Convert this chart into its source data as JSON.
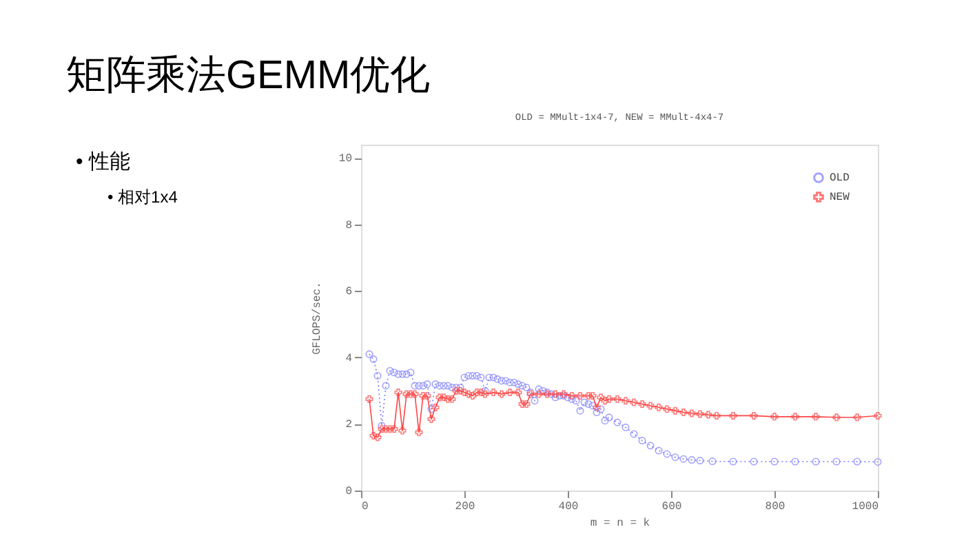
{
  "chart_data": {
    "type": "line",
    "title": "矩阵乘法GEMM优化",
    "subtitle": "OLD = MMult-1x4-7, NEW = MMult-4x4-7",
    "annotations": [
      "• 性能",
      "• 相对1x4"
    ],
    "xlabel": "m = n = k",
    "ylabel": "GFLOPS/sec.",
    "xlim": [
      0,
      1000
    ],
    "ylim": [
      0,
      10.4
    ],
    "xticks": [
      0,
      200,
      400,
      600,
      800,
      1000
    ],
    "yticks": [
      0,
      2,
      4,
      6,
      8,
      10
    ],
    "grid": false,
    "legend": "top right",
    "series": [
      {
        "name": "OLD",
        "color": "#7b7bff",
        "marker": "circle",
        "line_style": "dotted",
        "x": [
          16,
          24,
          32,
          40,
          48,
          56,
          64,
          72,
          80,
          88,
          96,
          104,
          112,
          120,
          128,
          136,
          144,
          152,
          160,
          168,
          176,
          184,
          192,
          200,
          208,
          216,
          224,
          232,
          240,
          248,
          256,
          264,
          272,
          280,
          288,
          296,
          304,
          312,
          320,
          328,
          336,
          344,
          352,
          360,
          368,
          376,
          384,
          392,
          400,
          408,
          416,
          424,
          432,
          440,
          448,
          456,
          464,
          472,
          480,
          496,
          512,
          528,
          544,
          560,
          576,
          592,
          608,
          624,
          640,
          656,
          680,
          720,
          760,
          800,
          840,
          880,
          920,
          960,
          1000
        ],
        "values": [
          4.1,
          3.95,
          3.45,
          1.95,
          3.15,
          3.6,
          3.55,
          3.5,
          3.5,
          3.5,
          3.55,
          3.15,
          3.15,
          3.15,
          3.2,
          2.45,
          3.2,
          3.15,
          3.15,
          3.15,
          3.1,
          3.1,
          3.1,
          3.4,
          3.45,
          3.45,
          3.45,
          3.4,
          3.0,
          3.4,
          3.4,
          3.35,
          3.3,
          3.3,
          3.25,
          3.25,
          3.2,
          3.15,
          3.1,
          2.95,
          2.7,
          3.05,
          3.0,
          2.95,
          2.9,
          2.8,
          2.85,
          2.85,
          2.8,
          2.75,
          2.7,
          2.4,
          2.65,
          2.6,
          2.55,
          2.35,
          2.45,
          2.1,
          2.2,
          2.05,
          1.9,
          1.7,
          1.5,
          1.35,
          1.2,
          1.1,
          1.0,
          0.95,
          0.92,
          0.9,
          0.88,
          0.87,
          0.87,
          0.87,
          0.87,
          0.87,
          0.87,
          0.87,
          0.86
        ]
      },
      {
        "name": "NEW",
        "color": "#ff4444",
        "marker": "cross",
        "line_style": "solid",
        "x": [
          16,
          24,
          32,
          40,
          48,
          56,
          64,
          72,
          80,
          88,
          96,
          104,
          112,
          120,
          128,
          136,
          144,
          152,
          160,
          168,
          176,
          184,
          192,
          200,
          208,
          216,
          224,
          232,
          240,
          256,
          272,
          288,
          304,
          312,
          320,
          328,
          344,
          360,
          376,
          392,
          408,
          424,
          440,
          448,
          456,
          464,
          472,
          480,
          496,
          512,
          528,
          544,
          560,
          576,
          592,
          608,
          624,
          640,
          656,
          672,
          688,
          720,
          760,
          800,
          840,
          880,
          920,
          960,
          1000
        ],
        "values": [
          2.75,
          1.65,
          1.6,
          1.85,
          1.85,
          1.85,
          1.85,
          2.95,
          1.8,
          2.9,
          2.9,
          2.9,
          1.75,
          2.85,
          2.85,
          2.15,
          2.5,
          2.8,
          2.8,
          2.75,
          2.75,
          3.0,
          3.0,
          2.95,
          2.9,
          2.85,
          2.95,
          2.95,
          2.9,
          2.95,
          2.9,
          2.95,
          2.95,
          2.6,
          2.6,
          2.9,
          2.9,
          2.9,
          2.9,
          2.9,
          2.85,
          2.85,
          2.85,
          2.85,
          2.5,
          2.8,
          2.7,
          2.75,
          2.75,
          2.7,
          2.65,
          2.6,
          2.55,
          2.5,
          2.45,
          2.4,
          2.35,
          2.32,
          2.3,
          2.28,
          2.25,
          2.25,
          2.25,
          2.22,
          2.22,
          2.22,
          2.2,
          2.2,
          2.25
        ]
      }
    ]
  }
}
